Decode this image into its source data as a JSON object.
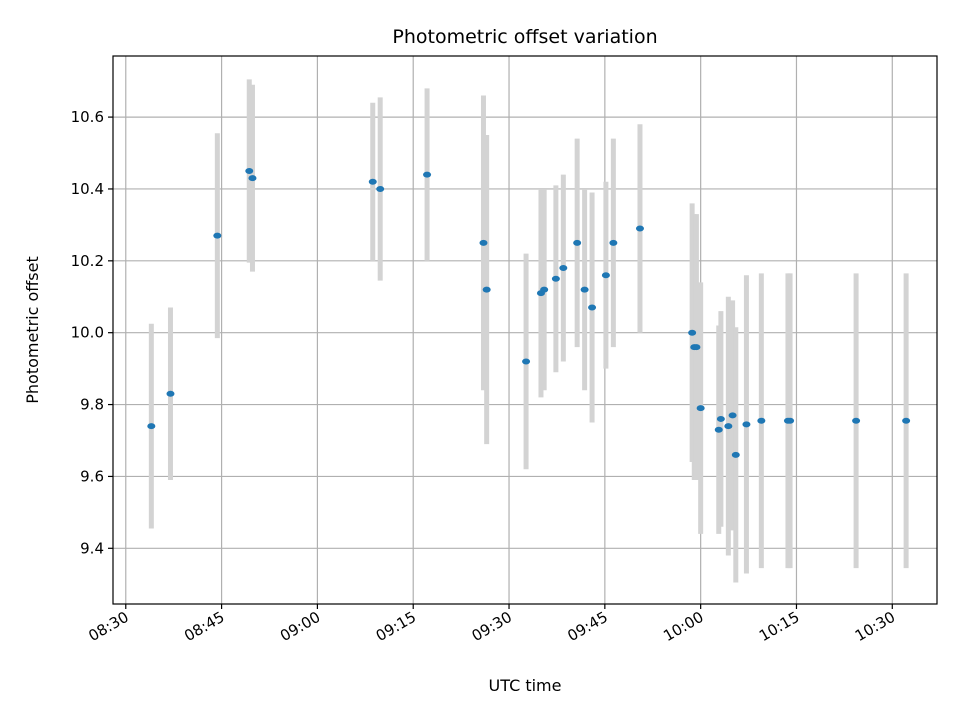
{
  "chart_data": {
    "type": "scatter",
    "title": "Photometric offset variation",
    "xlabel": "UTC time",
    "ylabel": "Photometric offset",
    "grid": true,
    "x_ticks": [
      "08:30",
      "08:45",
      "09:00",
      "09:15",
      "09:30",
      "09:45",
      "10:00",
      "10:15",
      "10:30"
    ],
    "y_ticks": [
      "9.4",
      "9.6",
      "9.8",
      "10.0",
      "10.2",
      "10.4",
      "10.6"
    ],
    "xlim": [
      "08:28",
      "10:37"
    ],
    "ylim": [
      9.245,
      10.77
    ],
    "marker_color": "#1f77b4",
    "errorbar_color": "#d3d3d3",
    "points": [
      {
        "t": "08:34:00",
        "y": 9.74,
        "yerr": 0.285
      },
      {
        "t": "08:37:00",
        "y": 9.83,
        "yerr": 0.24
      },
      {
        "t": "08:44:20",
        "y": 10.27,
        "yerr": 0.285
      },
      {
        "t": "08:49:20",
        "y": 10.45,
        "yerr": 0.255
      },
      {
        "t": "08:49:50",
        "y": 10.43,
        "yerr": 0.26
      },
      {
        "t": "09:08:40",
        "y": 10.42,
        "yerr": 0.22
      },
      {
        "t": "09:09:50",
        "y": 10.4,
        "yerr": 0.255
      },
      {
        "t": "09:17:10",
        "y": 10.44,
        "yerr": 0.24
      },
      {
        "t": "09:26:00",
        "y": 10.25,
        "yerr": 0.41
      },
      {
        "t": "09:26:30",
        "y": 10.12,
        "yerr": 0.43
      },
      {
        "t": "09:32:40",
        "y": 9.92,
        "yerr": 0.3
      },
      {
        "t": "09:35:00",
        "y": 10.11,
        "yerr": 0.29
      },
      {
        "t": "09:35:30",
        "y": 10.12,
        "yerr": 0.28
      },
      {
        "t": "09:37:20",
        "y": 10.15,
        "yerr": 0.26
      },
      {
        "t": "09:38:30",
        "y": 10.18,
        "yerr": 0.26
      },
      {
        "t": "09:40:40",
        "y": 10.25,
        "yerr": 0.29
      },
      {
        "t": "09:41:50",
        "y": 10.12,
        "yerr": 0.28
      },
      {
        "t": "09:43:00",
        "y": 10.07,
        "yerr": 0.32
      },
      {
        "t": "09:45:10",
        "y": 10.16,
        "yerr": 0.26
      },
      {
        "t": "09:46:20",
        "y": 10.25,
        "yerr": 0.29
      },
      {
        "t": "09:50:30",
        "y": 10.29,
        "yerr": 0.29
      },
      {
        "t": "09:58:40",
        "y": 10.0,
        "yerr": 0.36
      },
      {
        "t": "09:59:00",
        "y": 9.96,
        "yerr": 0.37
      },
      {
        "t": "09:59:20",
        "y": 9.96,
        "yerr": 0.37
      },
      {
        "t": "10:00:00",
        "y": 9.79,
        "yerr": 0.35
      },
      {
        "t": "10:02:50",
        "y": 9.73,
        "yerr": 0.29
      },
      {
        "t": "10:03:10",
        "y": 9.76,
        "yerr": 0.3
      },
      {
        "t": "10:04:20",
        "y": 9.74,
        "yerr": 0.36
      },
      {
        "t": "10:05:00",
        "y": 9.77,
        "yerr": 0.32
      },
      {
        "t": "10:05:30",
        "y": 9.66,
        "yerr": 0.355
      },
      {
        "t": "10:07:10",
        "y": 9.745,
        "yerr": 0.415
      },
      {
        "t": "10:09:30",
        "y": 9.755,
        "yerr": 0.41
      },
      {
        "t": "10:13:40",
        "y": 9.755,
        "yerr": 0.41
      },
      {
        "t": "10:14:00",
        "y": 9.755,
        "yerr": 0.41
      },
      {
        "t": "10:24:20",
        "y": 9.755,
        "yerr": 0.41
      },
      {
        "t": "10:32:10",
        "y": 9.755,
        "yerr": 0.41
      }
    ]
  }
}
